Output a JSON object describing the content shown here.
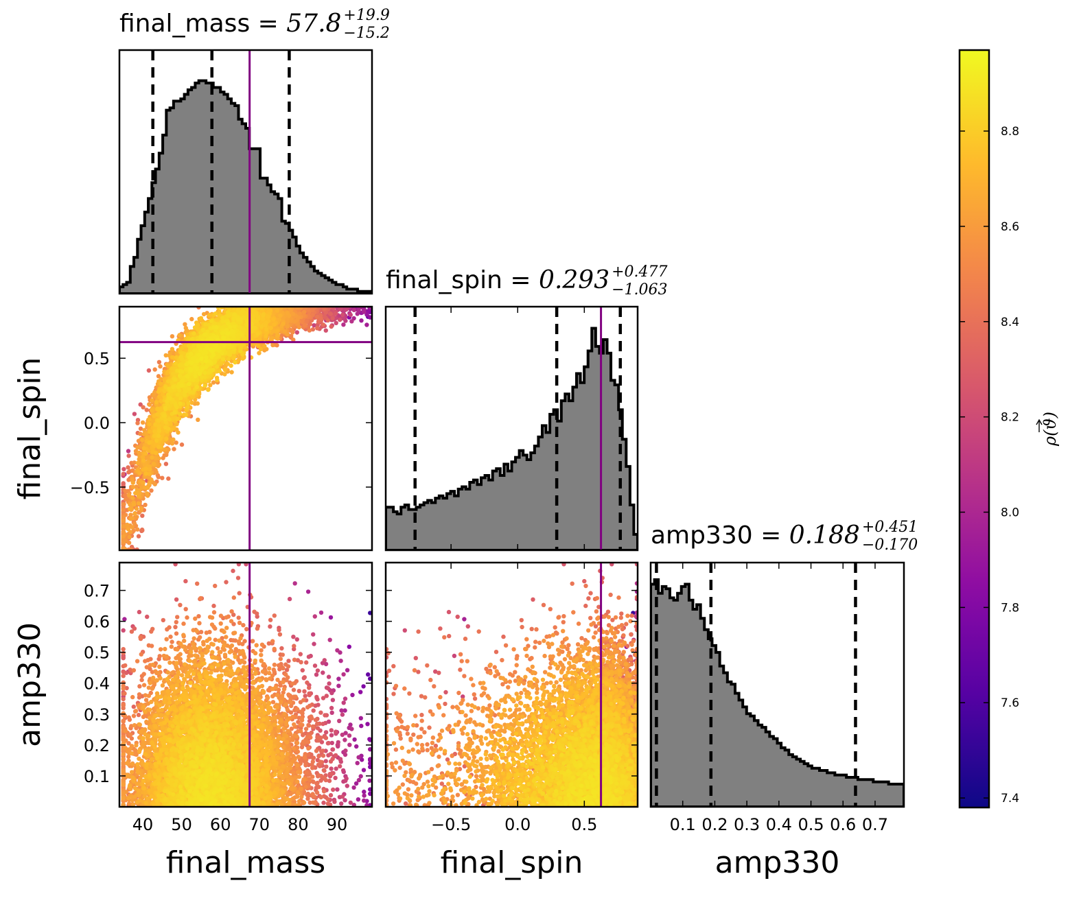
{
  "chart_data": {
    "type": "scatter",
    "parameters": [
      {
        "name": "final_mass",
        "range": [
          34,
          99
        ],
        "ticks": [
          40,
          50,
          60,
          70,
          80,
          90
        ],
        "tick_labels": [
          "40",
          "50",
          "60",
          "70",
          "80",
          "90"
        ],
        "truth": 67.5,
        "median": 57.8,
        "quantile_low": 42.6,
        "quantile_high": 77.7,
        "title_value": "57.8",
        "title_plus": "+19.9",
        "title_minus": "−15.2"
      },
      {
        "name": "final_spin",
        "range": [
          -0.99,
          0.9
        ],
        "ticks": [
          -0.5,
          0.0,
          0.5
        ],
        "tick_labels": [
          "−0.5",
          "0.0",
          "0.5"
        ],
        "truth": 0.625,
        "median": 0.293,
        "quantile_low": -0.77,
        "quantile_high": 0.77,
        "title_value": "0.293",
        "title_plus": "+0.477",
        "title_minus": "−1.063"
      },
      {
        "name": "amp330",
        "range": [
          0.0,
          0.79
        ],
        "ticks": [
          0.1,
          0.2,
          0.3,
          0.4,
          0.5,
          0.6,
          0.7
        ],
        "tick_labels": [
          "0.1",
          "0.2",
          "0.3",
          "0.4",
          "0.5",
          "0.6",
          "0.7"
        ],
        "truth": null,
        "median": 0.188,
        "quantile_low": 0.018,
        "quantile_high": 0.639,
        "title_value": "0.188",
        "title_plus": "+0.451",
        "title_minus": "−0.170"
      }
    ],
    "histograms": {
      "final_mass": [
        0.03,
        0.04,
        0.05,
        0.12,
        0.16,
        0.24,
        0.3,
        0.36,
        0.42,
        0.49,
        0.55,
        0.62,
        0.7,
        0.81,
        0.82,
        0.85,
        0.85,
        0.86,
        0.88,
        0.9,
        0.91,
        0.93,
        0.94,
        0.94,
        0.93,
        0.93,
        0.91,
        0.91,
        0.89,
        0.88,
        0.86,
        0.84,
        0.83,
        0.77,
        0.75,
        0.73,
        0.64,
        0.64,
        0.64,
        0.51,
        0.51,
        0.48,
        0.45,
        0.44,
        0.42,
        0.32,
        0.31,
        0.28,
        0.25,
        0.21,
        0.18,
        0.16,
        0.14,
        0.12,
        0.1,
        0.09,
        0.08,
        0.07,
        0.06,
        0.05,
        0.04,
        0.04,
        0.03,
        0.02,
        0.02,
        0.02,
        0.01,
        0.01,
        0.01,
        0.01
      ],
      "final_spin": [
        0.19,
        0.19,
        0.17,
        0.16,
        0.19,
        0.2,
        0.18,
        0.18,
        0.19,
        0.2,
        0.21,
        0.22,
        0.21,
        0.23,
        0.24,
        0.23,
        0.25,
        0.26,
        0.24,
        0.27,
        0.28,
        0.27,
        0.3,
        0.31,
        0.29,
        0.32,
        0.33,
        0.31,
        0.35,
        0.36,
        0.33,
        0.38,
        0.35,
        0.39,
        0.41,
        0.44,
        0.42,
        0.4,
        0.43,
        0.46,
        0.5,
        0.55,
        0.52,
        0.6,
        0.62,
        0.57,
        0.66,
        0.69,
        0.66,
        0.72,
        0.78,
        0.74,
        0.81,
        0.88,
        0.98,
        0.9,
        0.87,
        0.93,
        0.87,
        0.75,
        0.73,
        0.62,
        0.49,
        0.37,
        0.2,
        0.07
      ],
      "amp330": [
        0.98,
        1.0,
        0.94,
        0.97,
        0.96,
        0.92,
        0.91,
        0.94,
        0.97,
        0.98,
        0.91,
        0.87,
        0.89,
        0.83,
        0.78,
        0.74,
        0.71,
        0.68,
        0.62,
        0.59,
        0.55,
        0.54,
        0.5,
        0.47,
        0.44,
        0.41,
        0.4,
        0.38,
        0.36,
        0.35,
        0.33,
        0.31,
        0.3,
        0.28,
        0.26,
        0.25,
        0.23,
        0.22,
        0.21,
        0.2,
        0.19,
        0.18,
        0.17,
        0.17,
        0.16,
        0.16,
        0.15,
        0.15,
        0.14,
        0.14,
        0.14,
        0.13,
        0.13,
        0.13,
        0.12,
        0.12,
        0.12,
        0.12,
        0.11,
        0.11,
        0.11,
        0.11,
        0.1,
        0.1,
        0.1,
        0.1
      ]
    },
    "colorbar": {
      "label": "ρ(ϑ)",
      "range": [
        7.38,
        8.97
      ],
      "ticks": [
        7.4,
        7.6,
        7.8,
        8.0,
        8.2,
        8.4,
        8.6,
        8.8
      ],
      "tick_labels": [
        "7.4",
        "7.6",
        "7.8",
        "8.0",
        "8.2",
        "8.4",
        "8.6",
        "8.8"
      ],
      "colormap": "plasma",
      "colors": [
        "#0d0887",
        "#5302a3",
        "#8b0aa5",
        "#b83289",
        "#db5c68",
        "#f48849",
        "#febd2a",
        "#f0f921"
      ]
    },
    "truth_line_color": "#800080",
    "histogram_fill_color": "#808080",
    "scatter_samples": 9000,
    "grid": false
  }
}
